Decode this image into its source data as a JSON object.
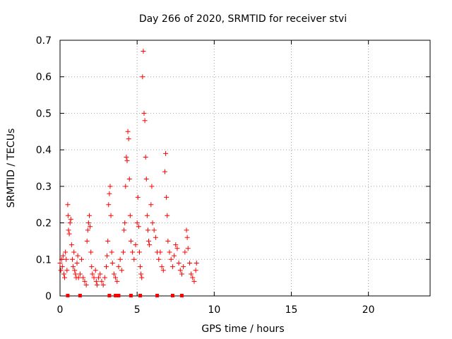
{
  "chart_data": {
    "type": "scatter",
    "title": "Day 266 of 2020, SRMTID for receiver stvi",
    "xlabel": "GPS time / hours",
    "ylabel": "SRMTID / TECUs",
    "xlim": [
      0,
      24
    ],
    "ylim": [
      0,
      0.7
    ],
    "x_ticks": [
      0,
      5,
      10,
      15,
      20
    ],
    "y_ticks": [
      0,
      0.1,
      0.2,
      0.3,
      0.4,
      0.5,
      0.6,
      0.7
    ],
    "x_tick_labels": [
      "0",
      "5",
      "10",
      "15",
      "20"
    ],
    "y_tick_labels": [
      "0",
      "0.1",
      "0.2",
      "0.3",
      "0.4",
      "0.5",
      "0.6",
      "0.7"
    ],
    "grid": true,
    "marker": "plus",
    "color": "#ff0000",
    "series": [
      {
        "name": "SRMTID",
        "points": [
          [
            0.0,
            0.09
          ],
          [
            0.05,
            0.07
          ],
          [
            0.1,
            0.1
          ],
          [
            0.15,
            0.08
          ],
          [
            0.2,
            0.11
          ],
          [
            0.25,
            0.06
          ],
          [
            0.3,
            0.05
          ],
          [
            0.35,
            0.12
          ],
          [
            0.4,
            0.1
          ],
          [
            0.45,
            0.07
          ],
          [
            0.5,
            0.25
          ],
          [
            0.52,
            0.22
          ],
          [
            0.55,
            0.18
          ],
          [
            0.6,
            0.17
          ],
          [
            0.65,
            0.2
          ],
          [
            0.7,
            0.21
          ],
          [
            0.75,
            0.14
          ],
          [
            0.8,
            0.1
          ],
          [
            0.85,
            0.08
          ],
          [
            0.9,
            0.12
          ],
          [
            0.95,
            0.07
          ],
          [
            1.0,
            0.06
          ],
          [
            1.05,
            0.05
          ],
          [
            1.1,
            0.09
          ],
          [
            1.15,
            0.11
          ],
          [
            1.2,
            0.05
          ],
          [
            1.3,
            0.06
          ],
          [
            1.4,
            0.1
          ],
          [
            1.5,
            0.05
          ],
          [
            1.6,
            0.04
          ],
          [
            1.7,
            0.03
          ],
          [
            1.75,
            0.15
          ],
          [
            1.8,
            0.18
          ],
          [
            1.85,
            0.2
          ],
          [
            1.9,
            0.22
          ],
          [
            1.95,
            0.19
          ],
          [
            2.0,
            0.12
          ],
          [
            2.05,
            0.08
          ],
          [
            2.1,
            0.06
          ],
          [
            2.2,
            0.05
          ],
          [
            2.3,
            0.07
          ],
          [
            2.35,
            0.04
          ],
          [
            2.4,
            0.03
          ],
          [
            2.5,
            0.05
          ],
          [
            2.6,
            0.06
          ],
          [
            2.7,
            0.04
          ],
          [
            2.8,
            0.03
          ],
          [
            2.9,
            0.05
          ],
          [
            3.0,
            0.08
          ],
          [
            3.05,
            0.11
          ],
          [
            3.1,
            0.15
          ],
          [
            3.15,
            0.25
          ],
          [
            3.2,
            0.28
          ],
          [
            3.25,
            0.3
          ],
          [
            3.3,
            0.22
          ],
          [
            3.35,
            0.12
          ],
          [
            3.4,
            0.09
          ],
          [
            3.5,
            0.06
          ],
          [
            3.6,
            0.05
          ],
          [
            3.7,
            0.04
          ],
          [
            3.8,
            0.08
          ],
          [
            3.9,
            0.1
          ],
          [
            4.0,
            0.07
          ],
          [
            4.1,
            0.12
          ],
          [
            4.15,
            0.18
          ],
          [
            4.2,
            0.2
          ],
          [
            4.25,
            0.3
          ],
          [
            4.3,
            0.38
          ],
          [
            4.35,
            0.37
          ],
          [
            4.4,
            0.45
          ],
          [
            4.45,
            0.43
          ],
          [
            4.5,
            0.32
          ],
          [
            4.55,
            0.22
          ],
          [
            4.6,
            0.15
          ],
          [
            4.7,
            0.12
          ],
          [
            4.8,
            0.1
          ],
          [
            4.9,
            0.14
          ],
          [
            5.0,
            0.2
          ],
          [
            5.05,
            0.27
          ],
          [
            5.1,
            0.19
          ],
          [
            5.15,
            0.12
          ],
          [
            5.2,
            0.08
          ],
          [
            5.25,
            0.06
          ],
          [
            5.3,
            0.05
          ],
          [
            5.35,
            0.6
          ],
          [
            5.4,
            0.67
          ],
          [
            5.45,
            0.5
          ],
          [
            5.5,
            0.48
          ],
          [
            5.55,
            0.38
          ],
          [
            5.6,
            0.32
          ],
          [
            5.65,
            0.22
          ],
          [
            5.7,
            0.18
          ],
          [
            5.75,
            0.15
          ],
          [
            5.8,
            0.14
          ],
          [
            5.9,
            0.25
          ],
          [
            5.95,
            0.3
          ],
          [
            6.0,
            0.2
          ],
          [
            6.1,
            0.18
          ],
          [
            6.2,
            0.16
          ],
          [
            6.3,
            0.12
          ],
          [
            6.4,
            0.1
          ],
          [
            6.5,
            0.12
          ],
          [
            6.6,
            0.08
          ],
          [
            6.7,
            0.07
          ],
          [
            6.8,
            0.34
          ],
          [
            6.85,
            0.39
          ],
          [
            6.9,
            0.27
          ],
          [
            6.95,
            0.22
          ],
          [
            7.0,
            0.15
          ],
          [
            7.1,
            0.12
          ],
          [
            7.2,
            0.1
          ],
          [
            7.3,
            0.08
          ],
          [
            7.4,
            0.11
          ],
          [
            7.5,
            0.14
          ],
          [
            7.6,
            0.13
          ],
          [
            7.7,
            0.09
          ],
          [
            7.8,
            0.07
          ],
          [
            7.9,
            0.06
          ],
          [
            8.0,
            0.08
          ],
          [
            8.1,
            0.12
          ],
          [
            8.2,
            0.18
          ],
          [
            8.25,
            0.16
          ],
          [
            8.3,
            0.13
          ],
          [
            8.4,
            0.09
          ],
          [
            8.5,
            0.06
          ],
          [
            8.6,
            0.05
          ],
          [
            8.7,
            0.04
          ],
          [
            8.8,
            0.07
          ],
          [
            8.85,
            0.09
          ]
        ]
      }
    ],
    "zero_markers_x": [
      0.5,
      1.3,
      3.2,
      3.6,
      3.8,
      4.6,
      5.2,
      6.3,
      7.3,
      7.9
    ]
  }
}
